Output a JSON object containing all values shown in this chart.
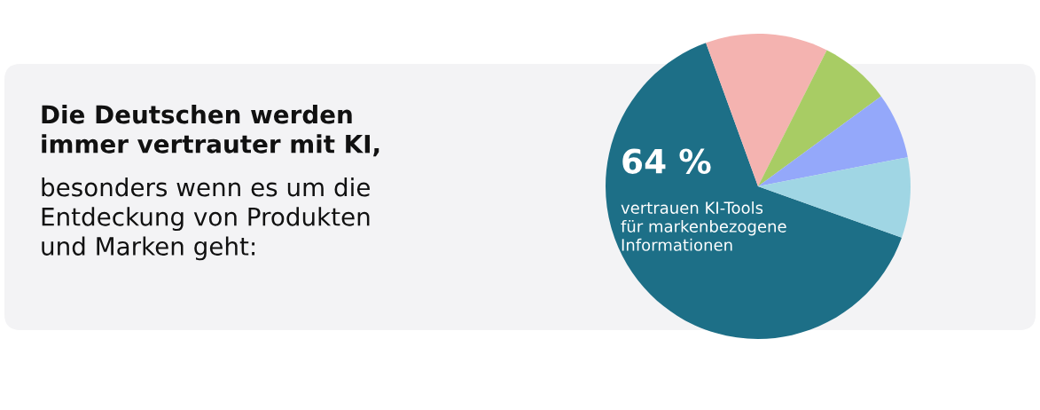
{
  "chart_data": {
    "type": "pie",
    "title": "Die Deutschen werden\nimmer vertrauter mit KI,",
    "subtitle": "besonders wenn es um die\nEntdeckung von Produkten\nund Marken geht:",
    "categories": [
      null,
      null,
      null,
      null,
      null
    ],
    "values": [
      64,
      13,
      7.5,
      7,
      8.5
    ],
    "colors": [
      "#1d6f87",
      "#f4b3b0",
      "#a8cc64",
      "#94a8fa",
      "#a0d6e4"
    ],
    "value_labels": [
      "64 %",
      null,
      null,
      null,
      null
    ],
    "annotations": [
      "vertrauen KI-Tools\nfür markenbezogene\nInformationen"
    ],
    "legend": false
  }
}
